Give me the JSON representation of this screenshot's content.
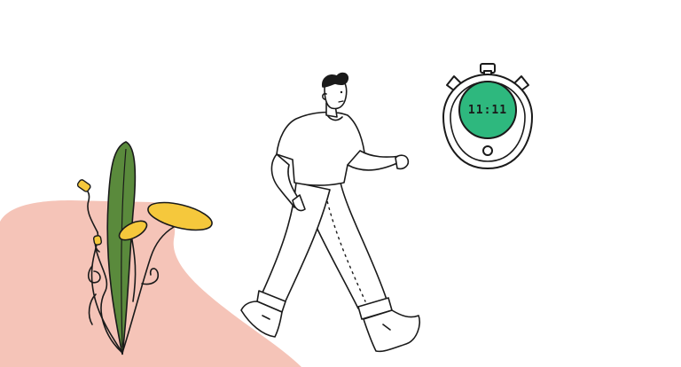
{
  "scene": {
    "background_color": "#ffffff",
    "blob_color": "#f5c4b8",
    "plant_color": "#5a8a3c",
    "flower_color": "#f5c83c",
    "stopwatch_accent": "#2eb87e",
    "line_color": "#1a1a1a"
  },
  "stopwatch": {
    "readout": "11:11"
  }
}
